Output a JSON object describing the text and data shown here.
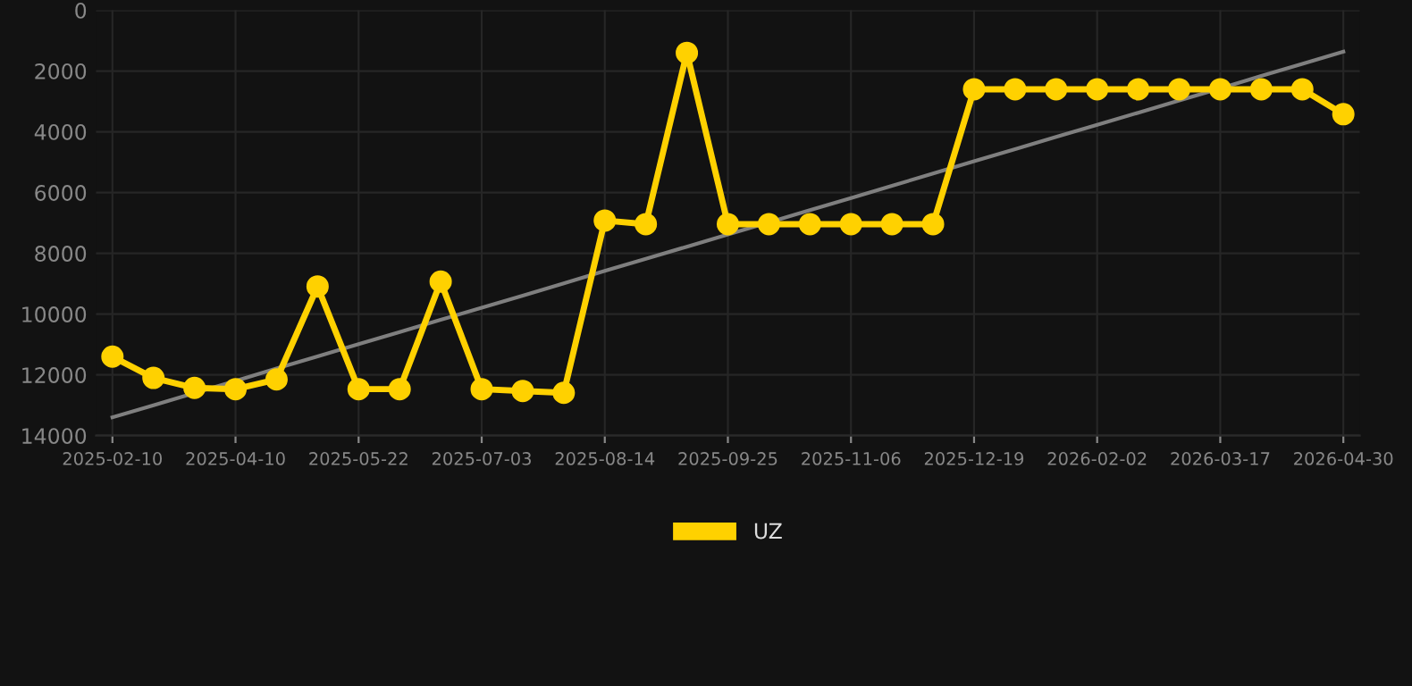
{
  "chart_data": {
    "type": "line",
    "categories": [
      "2025-02-10",
      null,
      null,
      "2025-04-10",
      null,
      null,
      "2025-05-22",
      null,
      null,
      "2025-07-03",
      null,
      null,
      "2025-08-14",
      null,
      null,
      "2025-09-25",
      null,
      null,
      "2025-11-06",
      null,
      null,
      "2025-12-19",
      null,
      null,
      "2026-02-02",
      null,
      null,
      "2026-03-17",
      null,
      null,
      "2026-04-30"
    ],
    "series": [
      {
        "name": "UZ",
        "color": "#ffd100",
        "marker": "circle",
        "values": [
          11400,
          12100,
          12430,
          12470,
          12150,
          9090,
          12470,
          12470,
          8930,
          12470,
          12530,
          12590,
          6920,
          7040,
          1400,
          7040,
          7040,
          7040,
          7040,
          7040,
          7040,
          2600,
          2600,
          2600,
          2600,
          2600,
          2600,
          2600,
          2600,
          2600,
          3420
        ]
      },
      {
        "type": "line",
        "color": "#7f7f7f",
        "marker": "none",
        "values": [
          13400,
          13000,
          12600,
          12200,
          11790,
          11390,
          10990,
          10590,
          10190,
          9790,
          9390,
          8990,
          8580,
          8180,
          7780,
          7380,
          6980,
          6580,
          6180,
          5780,
          5370,
          4970,
          4570,
          4170,
          3770,
          3370,
          2970,
          2570,
          2160,
          1760,
          1360
        ]
      }
    ],
    "ylim": [
      14000,
      0
    ],
    "yticks": [
      0,
      2000,
      4000,
      6000,
      8000,
      10000,
      12000,
      14000
    ],
    "grid": true,
    "legend": "bottom"
  }
}
